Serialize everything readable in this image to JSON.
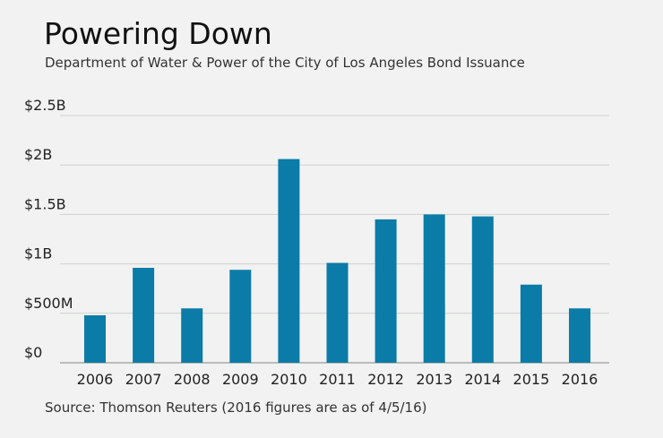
{
  "title": "Powering Down",
  "subtitle": "Department of Water & Power of the City of Los Angeles Bond Issuance",
  "source": "Source: Thomson Reuters (2016 figures are as of 4/5/16)",
  "colors": {
    "bar": "#0a7ca7",
    "grid": "#cfd1d0",
    "background": "#f1f2f1"
  },
  "chart_data": {
    "type": "bar",
    "title": "Powering Down",
    "subtitle": "Department of Water & Power of the City of Los Angeles Bond Issuance",
    "categories": [
      "2006",
      "2007",
      "2008",
      "2009",
      "2010",
      "2011",
      "2012",
      "2013",
      "2014",
      "2015",
      "2016"
    ],
    "values": [
      0.48,
      0.96,
      0.55,
      0.94,
      2.06,
      1.01,
      1.45,
      1.5,
      1.48,
      0.79,
      0.55
    ],
    "unit": "billions USD",
    "ylim": [
      0,
      2.5
    ],
    "yticks": [
      {
        "value": 0,
        "label": "$0"
      },
      {
        "value": 0.5,
        "label": "$500M"
      },
      {
        "value": 1,
        "label": "$1B"
      },
      {
        "value": 1.5,
        "label": "$1.5B"
      },
      {
        "value": 2,
        "label": "$2B"
      },
      {
        "value": 2.5,
        "label": "$2.5B"
      }
    ],
    "grid": true,
    "legend": "none"
  }
}
